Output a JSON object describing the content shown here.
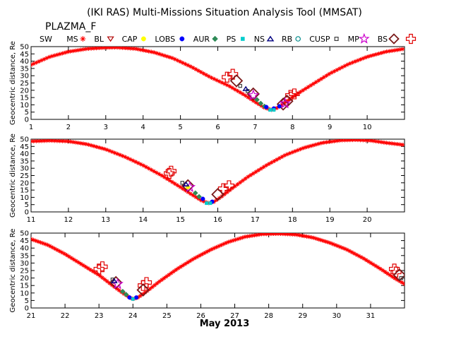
{
  "title": "(IKI RAS) Multi-Missions Situation Analysis Tool (MMSAT)",
  "mission": "PLAZMA_F",
  "xlabel": "May 2013",
  "legend": [
    {
      "label": "SW",
      "symbol": "none",
      "color": "#ff0000"
    },
    {
      "label": "MS",
      "symbol": "star",
      "color": "#ff0000"
    },
    {
      "label": "BL",
      "symbol": "tri-down",
      "color": "#b00000"
    },
    {
      "label": "CAP",
      "symbol": "circle",
      "color": "#ffff00"
    },
    {
      "label": "LOBS",
      "symbol": "circle",
      "color": "#0000ff"
    },
    {
      "label": "AUR",
      "symbol": "diamond",
      "color": "#2e8b57"
    },
    {
      "label": "PS",
      "symbol": "square",
      "color": "#00cccc"
    },
    {
      "label": "NS",
      "symbol": "tri-up",
      "color": "#000080"
    },
    {
      "label": "RB",
      "symbol": "circle-open",
      "color": "#008b8b"
    },
    {
      "label": "CUSP",
      "symbol": "square-open",
      "color": "#404040"
    },
    {
      "label": "MP",
      "symbol": "star-open",
      "color": "#cc00cc"
    },
    {
      "label": "BS",
      "symbol": "diamond-open",
      "color": "#7a1a1a"
    },
    {
      "label": "",
      "symbol": "cross-open",
      "color": "#e00000"
    }
  ],
  "chart_data": [
    {
      "type": "line",
      "ylabel": "Geocentric distance, Re",
      "xlim": [
        1,
        11
      ],
      "ylim": [
        0,
        50
      ],
      "xticks": [
        "1",
        "2",
        "3",
        "4",
        "5",
        "6",
        "7",
        "8",
        "9",
        "10"
      ],
      "yticks": [
        "0",
        "5",
        "10",
        "15",
        "20",
        "25",
        "30",
        "35",
        "40",
        "45",
        "50"
      ],
      "series": [
        {
          "x": [
            1.0,
            1.5,
            2.0,
            2.5,
            3.0,
            3.3,
            3.8,
            4.3,
            4.8,
            5.3,
            5.8,
            6.3,
            6.7,
            7.0,
            7.25,
            7.45,
            7.6,
            7.8,
            8.0,
            8.5,
            9.0,
            9.5,
            10.0,
            10.5,
            11.0
          ],
          "y": [
            37.5,
            43,
            46.5,
            48.5,
            49.3,
            49.4,
            48.5,
            46,
            42,
            36,
            29,
            23,
            17,
            12,
            8,
            6.5,
            8,
            11.5,
            15.5,
            23.5,
            31.5,
            38,
            43,
            46.5,
            48.5
          ]
        }
      ],
      "markers": [
        {
          "symbol": "cross-open",
          "color": "#e00000",
          "x": 6.25,
          "y": 29
        },
        {
          "symbol": "cross-open",
          "color": "#e00000",
          "x": 6.4,
          "y": 31
        },
        {
          "symbol": "cross-open",
          "color": "#e00000",
          "x": 7.95,
          "y": 16.5
        },
        {
          "symbol": "cross-open",
          "color": "#e00000",
          "x": 8.05,
          "y": 17.5
        },
        {
          "symbol": "diamond-open",
          "color": "#7a1a1a",
          "x": 6.5,
          "y": 26.5
        },
        {
          "symbol": "diamond-open",
          "color": "#7a1a1a",
          "x": 6.95,
          "y": 17.5
        },
        {
          "symbol": "diamond-open",
          "color": "#7a1a1a",
          "x": 7.75,
          "y": 10.5
        },
        {
          "symbol": "diamond-open",
          "color": "#7a1a1a",
          "x": 7.85,
          "y": 12.5
        },
        {
          "symbol": "star-open",
          "color": "#cc00cc",
          "x": 6.95,
          "y": 16.5
        },
        {
          "symbol": "star-open",
          "color": "#cc00cc",
          "x": 7.8,
          "y": 11
        },
        {
          "symbol": "square-open",
          "color": "#404040",
          "x": 6.6,
          "y": 23
        },
        {
          "symbol": "square-open",
          "color": "#404040",
          "x": 6.8,
          "y": 19.5
        },
        {
          "symbol": "tri-up",
          "color": "#000080",
          "x": 6.75,
          "y": 21
        },
        {
          "symbol": "diamond",
          "color": "#2e8b57",
          "x": 7.05,
          "y": 13.5
        },
        {
          "symbol": "diamond",
          "color": "#2e8b57",
          "x": 7.15,
          "y": 11
        },
        {
          "symbol": "diamond",
          "color": "#2e8b57",
          "x": 7.25,
          "y": 9
        },
        {
          "symbol": "circle",
          "color": "#0000ff",
          "x": 7.3,
          "y": 8.5
        },
        {
          "symbol": "circle",
          "color": "#0000ff",
          "x": 7.5,
          "y": 7.5
        },
        {
          "symbol": "circle",
          "color": "#0000ff",
          "x": 7.65,
          "y": 9
        },
        {
          "symbol": "square",
          "color": "#00cccc",
          "x": 7.4,
          "y": 6.5
        },
        {
          "symbol": "square",
          "color": "#00cccc",
          "x": 7.5,
          "y": 6.5
        }
      ]
    },
    {
      "type": "line",
      "ylabel": "Geocentric distance, Re",
      "xlim": [
        11,
        21
      ],
      "ylim": [
        0,
        50
      ],
      "xticks": [
        "11",
        "12",
        "13",
        "14",
        "15",
        "16",
        "17",
        "18",
        "19",
        "20"
      ],
      "yticks": [
        "0",
        "5",
        "10",
        "15",
        "20",
        "25",
        "30",
        "35",
        "40",
        "45",
        "50"
      ],
      "series": [
        {
          "x": [
            11.0,
            11.5,
            12.0,
            12.5,
            13.0,
            13.5,
            14.0,
            14.5,
            15.0,
            15.3,
            15.55,
            15.75,
            15.9,
            16.1,
            16.4,
            16.8,
            17.3,
            17.8,
            18.3,
            18.8,
            19.3,
            19.7,
            20.1,
            20.5,
            21.0
          ],
          "y": [
            48.5,
            49.0,
            48.5,
            46.5,
            43,
            38,
            32,
            25,
            17,
            12,
            8,
            6,
            7,
            10.5,
            16.5,
            24,
            32,
            39,
            44,
            47.5,
            49.2,
            49.5,
            49,
            47.5,
            46
          ]
        }
      ],
      "markers": [
        {
          "symbol": "cross-open",
          "color": "#e00000",
          "x": 14.7,
          "y": 26.5
        },
        {
          "symbol": "cross-open",
          "color": "#e00000",
          "x": 14.75,
          "y": 28
        },
        {
          "symbol": "cross-open",
          "color": "#e00000",
          "x": 16.15,
          "y": 16
        },
        {
          "symbol": "cross-open",
          "color": "#e00000",
          "x": 16.3,
          "y": 18
        },
        {
          "symbol": "diamond-open",
          "color": "#7a1a1a",
          "x": 15.2,
          "y": 18
        },
        {
          "symbol": "diamond-open",
          "color": "#7a1a1a",
          "x": 16.0,
          "y": 12
        },
        {
          "symbol": "star-open",
          "color": "#cc00cc",
          "x": 15.25,
          "y": 17
        },
        {
          "symbol": "circle",
          "color": "#ffff00",
          "x": 15.2,
          "y": 17
        },
        {
          "symbol": "square-open",
          "color": "#404040",
          "x": 15.05,
          "y": 20
        },
        {
          "symbol": "tri-up",
          "color": "#000080",
          "x": 15.15,
          "y": 19
        },
        {
          "symbol": "diamond",
          "color": "#2e8b57",
          "x": 15.4,
          "y": 13
        },
        {
          "symbol": "diamond",
          "color": "#2e8b57",
          "x": 15.5,
          "y": 10.5
        },
        {
          "symbol": "circle",
          "color": "#0000ff",
          "x": 15.6,
          "y": 9
        },
        {
          "symbol": "circle",
          "color": "#0000ff",
          "x": 15.85,
          "y": 7
        },
        {
          "symbol": "square",
          "color": "#00cccc",
          "x": 15.7,
          "y": 6
        },
        {
          "symbol": "square",
          "color": "#00cccc",
          "x": 15.8,
          "y": 6
        }
      ]
    },
    {
      "type": "line",
      "ylabel": "Geocentric distance, Re",
      "xlim": [
        21,
        32
      ],
      "ylim": [
        0,
        50
      ],
      "xticks": [
        "21",
        "22",
        "23",
        "24",
        "25",
        "26",
        "27",
        "28",
        "29",
        "30",
        "31"
      ],
      "yticks": [
        "0",
        "5",
        "10",
        "15",
        "20",
        "25",
        "30",
        "35",
        "40",
        "45",
        "50"
      ],
      "series": [
        {
          "x": [
            21.0,
            21.5,
            22.0,
            22.5,
            23.0,
            23.4,
            23.7,
            23.9,
            24.0,
            24.15,
            24.4,
            24.8,
            25.3,
            25.8,
            26.3,
            26.8,
            27.3,
            27.8,
            28.3,
            28.8,
            29.3,
            29.8,
            30.3,
            30.8,
            31.3,
            31.7,
            32.0
          ],
          "y": [
            46,
            42,
            36,
            29,
            22,
            15,
            10,
            7,
            6,
            7,
            11,
            18,
            26,
            33,
            39,
            44,
            47.5,
            49.3,
            49.6,
            49,
            47,
            43.5,
            39,
            33,
            26,
            20,
            16
          ]
        }
      ],
      "markers": [
        {
          "symbol": "cross-open",
          "color": "#e00000",
          "x": 23.0,
          "y": 26
        },
        {
          "symbol": "cross-open",
          "color": "#e00000",
          "x": 23.1,
          "y": 27.5
        },
        {
          "symbol": "cross-open",
          "color": "#e00000",
          "x": 24.3,
          "y": 15
        },
        {
          "symbol": "cross-open",
          "color": "#e00000",
          "x": 24.4,
          "y": 17
        },
        {
          "symbol": "cross-open",
          "color": "#e00000",
          "x": 31.7,
          "y": 26
        },
        {
          "symbol": "cross-open",
          "color": "#e00000",
          "x": 31.75,
          "y": 24
        },
        {
          "symbol": "diamond-open",
          "color": "#7a1a1a",
          "x": 23.5,
          "y": 17
        },
        {
          "symbol": "diamond-open",
          "color": "#7a1a1a",
          "x": 24.3,
          "y": 12
        },
        {
          "symbol": "diamond-open",
          "color": "#7a1a1a",
          "x": 31.85,
          "y": 22
        },
        {
          "symbol": "star-open",
          "color": "#cc00cc",
          "x": 23.55,
          "y": 16
        },
        {
          "symbol": "square-open",
          "color": "#404040",
          "x": 23.4,
          "y": 19
        },
        {
          "symbol": "square-open",
          "color": "#404040",
          "x": 31.9,
          "y": 20
        },
        {
          "symbol": "tri-up",
          "color": "#000080",
          "x": 23.45,
          "y": 18
        },
        {
          "symbol": "diamond",
          "color": "#2e8b57",
          "x": 23.7,
          "y": 11
        },
        {
          "symbol": "diamond",
          "color": "#2e8b57",
          "x": 23.8,
          "y": 9
        },
        {
          "symbol": "circle",
          "color": "#0000ff",
          "x": 23.9,
          "y": 7
        },
        {
          "symbol": "circle",
          "color": "#0000ff",
          "x": 24.1,
          "y": 7
        },
        {
          "symbol": "square",
          "color": "#00cccc",
          "x": 24.0,
          "y": 6
        }
      ]
    }
  ]
}
